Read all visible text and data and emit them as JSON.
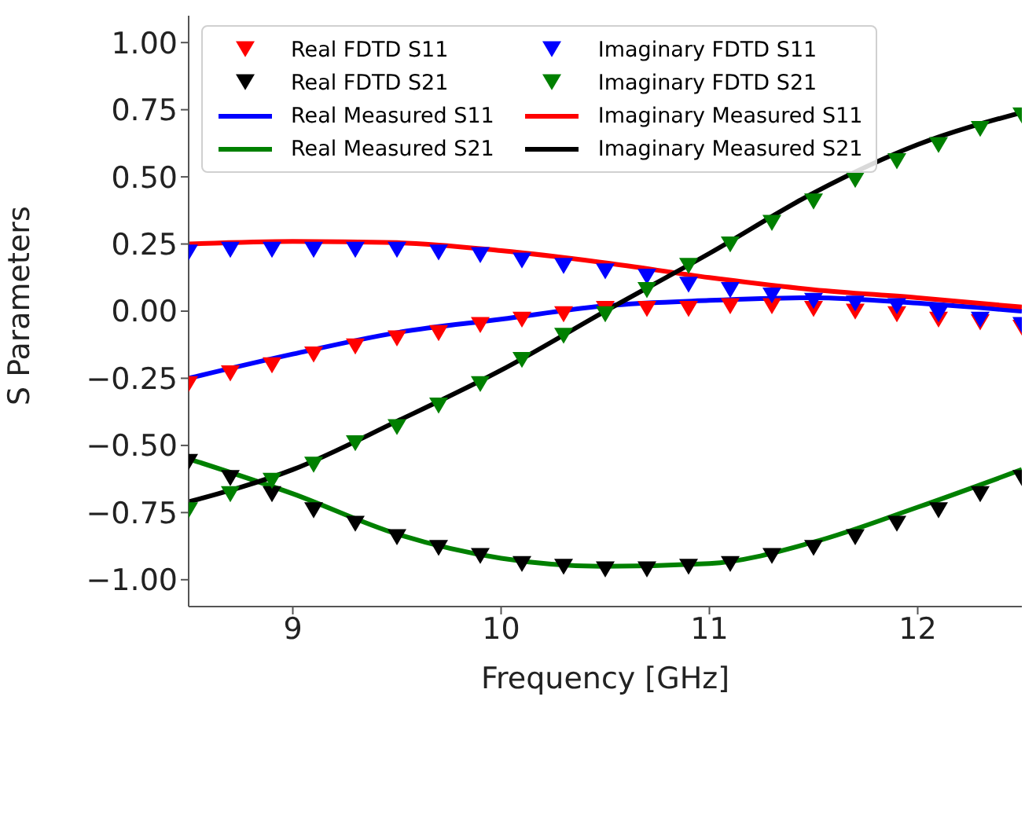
{
  "chart_data": {
    "type": "line",
    "xlabel": "Frequency [GHz]",
    "ylabel": "S Parameters",
    "xlim": [
      8.5,
      12.5
    ],
    "xticks": [
      9,
      10,
      11,
      12
    ],
    "ylim": [
      -1.1,
      1.1
    ],
    "yticks": [
      {
        "value": -1,
        "label": "−1.00"
      },
      {
        "value": -0.75,
        "label": "−0.75"
      },
      {
        "value": -0.5,
        "label": "−0.50"
      },
      {
        "value": -0.25,
        "label": "−0.25"
      },
      {
        "value": 0,
        "label": "0.00"
      },
      {
        "value": 0.25,
        "label": "0.25"
      },
      {
        "value": 0.5,
        "label": "0.50"
      },
      {
        "value": 0.75,
        "label": "0.75"
      },
      {
        "value": 1,
        "label": "1.00"
      }
    ],
    "grid": false,
    "legend": "top left",
    "x": [
      8.5,
      8.7,
      8.9,
      9.1,
      9.3,
      9.5,
      9.7,
      9.9,
      10.1,
      10.3,
      10.5,
      10.7,
      10.9,
      11.1,
      11.3,
      11.5,
      11.7,
      11.9,
      12.1,
      12.3,
      12.5
    ],
    "series": [
      {
        "name": "Real FDTD S11",
        "type": "scatter",
        "marker": "triangle",
        "color": "#ff0000",
        "values": [
          -0.27,
          -0.23,
          -0.2,
          -0.16,
          -0.13,
          -0.1,
          -0.08,
          -0.05,
          -0.03,
          -0.01,
          0.01,
          0.01,
          0.01,
          0.02,
          0.02,
          0.01,
          0.0,
          -0.01,
          -0.03,
          -0.04,
          -0.06
        ]
      },
      {
        "name": "Real FDTD S21",
        "type": "scatter",
        "marker": "triangle",
        "color": "#000000",
        "values": [
          -0.56,
          -0.62,
          -0.68,
          -0.74,
          -0.79,
          -0.84,
          -0.88,
          -0.91,
          -0.94,
          -0.95,
          -0.96,
          -0.96,
          -0.95,
          -0.94,
          -0.91,
          -0.88,
          -0.84,
          -0.79,
          -0.74,
          -0.68,
          -0.62
        ]
      },
      {
        "name": "Real Measured S11",
        "color": "#0000ff",
        "x": [
          8.5,
          9,
          9.5,
          10,
          10.5,
          11,
          11.5,
          12,
          12.5
        ],
        "values": [
          -0.25,
          -0.16,
          -0.08,
          -0.03,
          0.02,
          0.04,
          0.05,
          0.03,
          0.0
        ]
      },
      {
        "name": "Real Measured S21",
        "color": "#008000",
        "x": [
          8.5,
          9,
          9.5,
          10,
          10.5,
          11,
          11.5,
          12,
          12.5
        ],
        "values": [
          -0.55,
          -0.68,
          -0.83,
          -0.92,
          -0.95,
          -0.94,
          -0.86,
          -0.73,
          -0.59
        ]
      },
      {
        "name": "Imaginary FDTD S11",
        "type": "scatter",
        "marker": "triangle",
        "color": "#0000ff",
        "values": [
          0.22,
          0.23,
          0.23,
          0.23,
          0.23,
          0.23,
          0.22,
          0.21,
          0.19,
          0.17,
          0.15,
          0.13,
          0.1,
          0.08,
          0.06,
          0.04,
          0.03,
          0.02,
          -0.01,
          -0.03,
          -0.05
        ]
      },
      {
        "name": "Imaginary FDTD S21",
        "type": "scatter",
        "marker": "triangle",
        "color": "#008000",
        "values": [
          -0.74,
          -0.68,
          -0.63,
          -0.57,
          -0.49,
          -0.43,
          -0.35,
          -0.27,
          -0.18,
          -0.09,
          -0.01,
          0.08,
          0.17,
          0.25,
          0.33,
          0.41,
          0.49,
          0.56,
          0.62,
          0.68,
          0.73
        ]
      },
      {
        "name": "Imaginary Measured S11",
        "color": "#ff0000",
        "x": [
          8.5,
          9,
          9.5,
          10,
          10.5,
          11,
          11.5,
          12,
          12.5
        ],
        "values": [
          0.25,
          0.26,
          0.255,
          0.225,
          0.18,
          0.125,
          0.08,
          0.05,
          0.015
        ]
      },
      {
        "name": "Imaginary Measured S21",
        "color": "#000000",
        "x": [
          8.5,
          9,
          9.5,
          10,
          10.5,
          11,
          11.5,
          12,
          12.5
        ],
        "values": [
          -0.71,
          -0.59,
          -0.41,
          -0.22,
          0.0,
          0.215,
          0.44,
          0.62,
          0.74
        ]
      }
    ]
  }
}
